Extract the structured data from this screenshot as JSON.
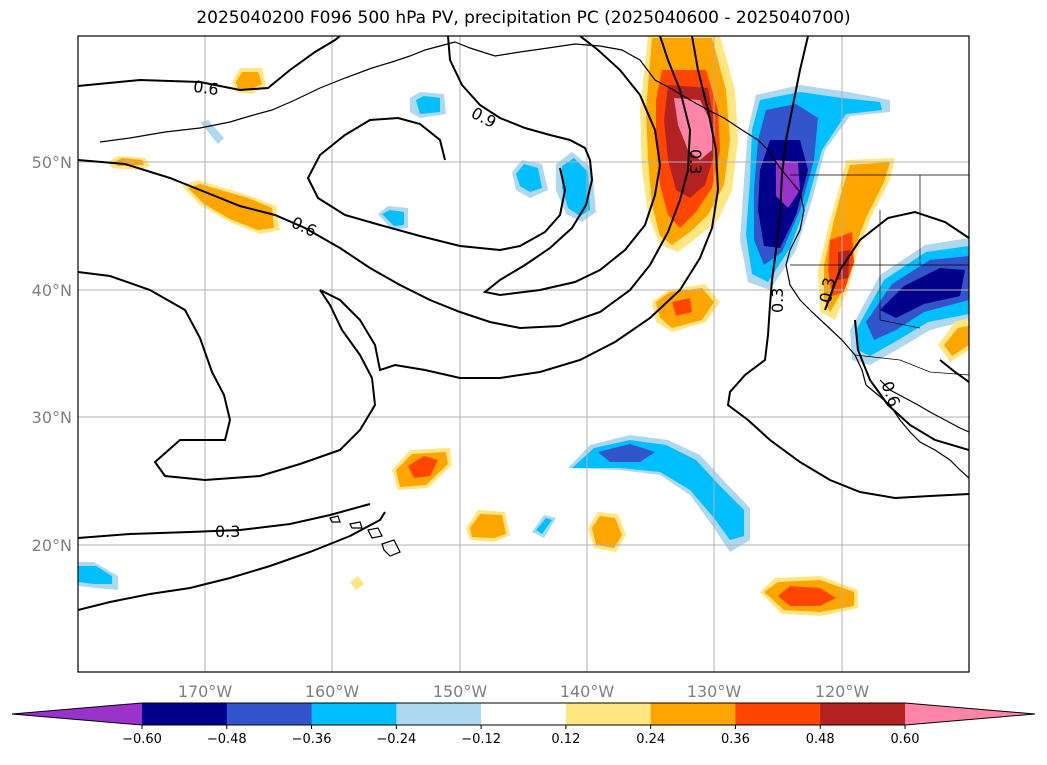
{
  "title": "2025040200 F096 500 hPa PV, precipitation PC (2025040600 - 2025040700)",
  "map": {
    "lon_range": [
      -180,
      -110
    ],
    "lat_range": [
      10,
      60
    ],
    "lat_ticks": [
      {
        "value": 50,
        "label": "50°N"
      },
      {
        "value": 40,
        "label": "40°N"
      },
      {
        "value": 30,
        "label": "30°N"
      },
      {
        "value": 20,
        "label": "20°N"
      }
    ],
    "lon_ticks": [
      {
        "value": -170,
        "label": "170°W"
      },
      {
        "value": -160,
        "label": "160°W"
      },
      {
        "value": -150,
        "label": "150°W"
      },
      {
        "value": -140,
        "label": "140°W"
      },
      {
        "value": -130,
        "label": "130°W"
      },
      {
        "value": -120,
        "label": "120°W"
      }
    ],
    "contour_labels": [
      "0.6",
      "0.9",
      "0.6",
      "0.3",
      "0.3",
      "0.3",
      "0.6",
      "0.3"
    ]
  },
  "colorbar": {
    "levels": [
      "−0.60",
      "−0.48",
      "−0.36",
      "−0.24",
      "−0.12",
      "0.12",
      "0.24",
      "0.36",
      "0.48",
      "0.60"
    ],
    "colors": [
      "#9933cc",
      "#00008b",
      "#3355cc",
      "#00bfff",
      "#add8f0",
      "#ffffff",
      "#ffe680",
      "#ffa500",
      "#ff4500",
      "#b22222",
      "#ff85a8"
    ]
  }
}
